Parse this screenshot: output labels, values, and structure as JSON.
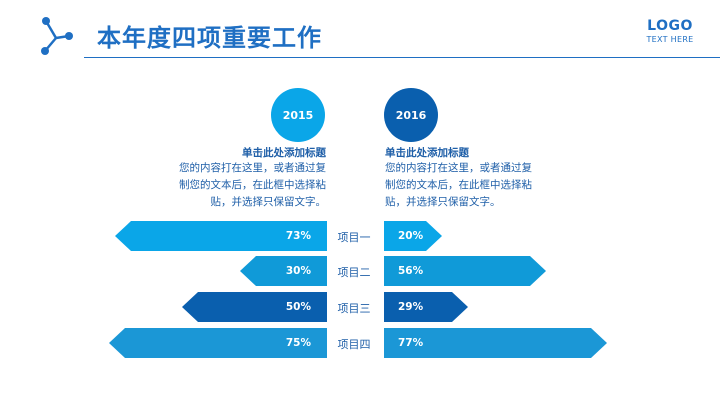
{
  "header": {
    "title": "本年度四项重要工作",
    "logo": "LOGO",
    "logo_sub": "TEXT HERE"
  },
  "columns": [
    {
      "year": "2015",
      "color": "#0aa6e8",
      "desc_title": "单击此处添加标题",
      "desc_lines": [
        "您的内容打在这里，或者通过复",
        "制您的文本后，在此框中选择粘",
        "贴，并选择只保留文字。"
      ]
    },
    {
      "year": "2016",
      "color": "#0a5fae",
      "desc_title": "单击此处添加标题",
      "desc_lines": [
        "您的内容打在这里，或者通过复",
        "制您的文本后，在此框中选择粘",
        "贴，并选择只保留文字。"
      ]
    }
  ],
  "rows": [
    {
      "label": "项目一",
      "left_value": "73%",
      "right_value": "20%",
      "left_fraction": 0.73,
      "right_fraction": 0.2,
      "color": "#0aa6e8"
    },
    {
      "label": "项目二",
      "left_value": "30%",
      "right_value": "56%",
      "left_fraction": 0.3,
      "right_fraction": 0.56,
      "color": "#109ad8"
    },
    {
      "label": "项目三",
      "left_value": "50%",
      "right_value": "29%",
      "left_fraction": 0.5,
      "right_fraction": 0.29,
      "color": "#0a5fae"
    },
    {
      "label": "项目四",
      "left_value": "75%",
      "right_value": "77%",
      "left_fraction": 0.75,
      "right_fraction": 0.77,
      "color": "#1b97d6"
    }
  ],
  "colors": {
    "accent": "#1f6fc3",
    "text": "#1f5fa8"
  },
  "icons": {
    "header": "connection-nodes-icon"
  }
}
